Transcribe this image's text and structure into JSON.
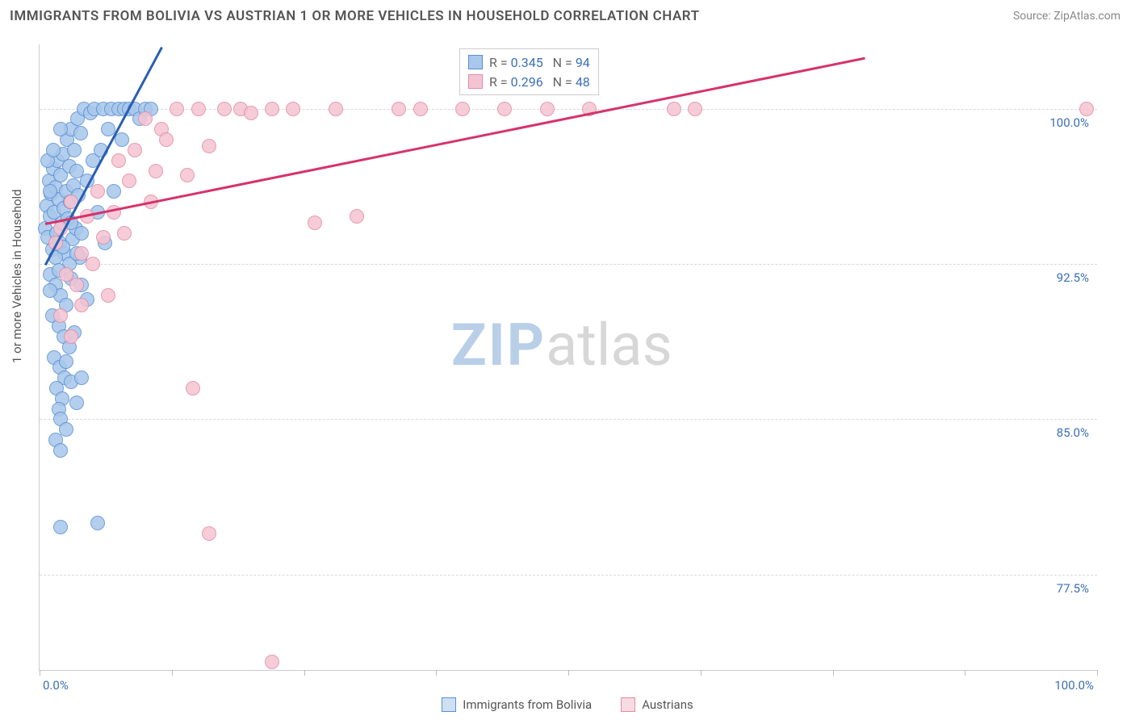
{
  "title": "IMMIGRANTS FROM BOLIVIA VS AUSTRIAN 1 OR MORE VEHICLES IN HOUSEHOLD CORRELATION CHART",
  "source": "Source: ZipAtlas.com",
  "ylabel": "1 or more Vehicles in Household",
  "watermark": {
    "zip": "ZIP",
    "atlas": "atlas",
    "color_zip": "#b9cfe8",
    "color_atlas": "#d7d7d7"
  },
  "chart": {
    "type": "scatter",
    "xlim": [
      0,
      100
    ],
    "ylim": [
      72.9,
      103.1
    ],
    "x_tick_positions": [
      0,
      12.5,
      25,
      37.5,
      50,
      62.5,
      75,
      87.5,
      100
    ],
    "x_tick_labels": {
      "0": "0.0%",
      "100": "100.0%"
    },
    "y_ticks": [
      77.5,
      85.0,
      92.5,
      100.0
    ],
    "y_tick_labels": [
      "77.5%",
      "85.0%",
      "92.5%",
      "100.0%"
    ],
    "grid_color": "#d8d8d8",
    "background_color": "#ffffff",
    "point_radius": 9,
    "point_stroke_width": 1.5,
    "point_fill_opacity": 0.35,
    "series": [
      {
        "name": "Immigrants from Bolivia",
        "key": "bolivia",
        "color_stroke": "#5a8fd6",
        "color_fill": "#a8c7ea",
        "R": 0.345,
        "N": 94,
        "trend": {
          "x1": 0.5,
          "y1": 92.5,
          "x2": 11.5,
          "y2": 103.0,
          "color": "#2a5fb0",
          "width": 2.5
        },
        "points": [
          [
            0.5,
            94.2
          ],
          [
            0.7,
            95.3
          ],
          [
            0.8,
            93.8
          ],
          [
            0.9,
            96.5
          ],
          [
            1.0,
            94.8
          ],
          [
            1.1,
            95.9
          ],
          [
            1.2,
            93.2
          ],
          [
            1.3,
            97.1
          ],
          [
            1.4,
            95.0
          ],
          [
            1.5,
            96.2
          ],
          [
            1.6,
            94.0
          ],
          [
            1.7,
            97.5
          ],
          [
            1.8,
            95.6
          ],
          [
            1.9,
            93.5
          ],
          [
            2.0,
            96.8
          ],
          [
            2.1,
            94.5
          ],
          [
            2.2,
            97.8
          ],
          [
            2.3,
            95.2
          ],
          [
            2.4,
            93.0
          ],
          [
            2.5,
            96.0
          ],
          [
            2.6,
            98.5
          ],
          [
            2.7,
            94.7
          ],
          [
            2.8,
            97.2
          ],
          [
            2.9,
            95.5
          ],
          [
            3.0,
            99.0
          ],
          [
            3.1,
            93.7
          ],
          [
            3.2,
            96.3
          ],
          [
            3.3,
            98.0
          ],
          [
            3.4,
            94.2
          ],
          [
            3.5,
            97.0
          ],
          [
            3.6,
            99.5
          ],
          [
            3.7,
            95.8
          ],
          [
            3.8,
            92.8
          ],
          [
            3.9,
            98.8
          ],
          [
            4.0,
            94.0
          ],
          [
            4.2,
            100.0
          ],
          [
            4.5,
            96.5
          ],
          [
            4.8,
            99.8
          ],
          [
            5.0,
            97.5
          ],
          [
            5.2,
            100.0
          ],
          [
            5.5,
            95.0
          ],
          [
            5.8,
            98.0
          ],
          [
            6.0,
            100.0
          ],
          [
            6.2,
            93.5
          ],
          [
            6.5,
            99.0
          ],
          [
            6.8,
            100.0
          ],
          [
            7.0,
            96.0
          ],
          [
            7.5,
            100.0
          ],
          [
            7.8,
            98.5
          ],
          [
            8.0,
            100.0
          ],
          [
            8.5,
            100.0
          ],
          [
            9.0,
            100.0
          ],
          [
            9.5,
            99.5
          ],
          [
            10.0,
            100.0
          ],
          [
            10.5,
            100.0
          ],
          [
            1.0,
            92.0
          ],
          [
            1.5,
            91.5
          ],
          [
            2.0,
            91.0
          ],
          [
            2.5,
            90.5
          ],
          [
            3.0,
            91.8
          ],
          [
            1.2,
            90.0
          ],
          [
            1.8,
            89.5
          ],
          [
            2.3,
            89.0
          ],
          [
            2.8,
            88.5
          ],
          [
            3.3,
            89.2
          ],
          [
            1.4,
            88.0
          ],
          [
            1.9,
            87.5
          ],
          [
            2.4,
            87.0
          ],
          [
            1.6,
            86.5
          ],
          [
            2.1,
            86.0
          ],
          [
            1.8,
            85.5
          ],
          [
            2.0,
            85.0
          ],
          [
            1.5,
            92.8
          ],
          [
            2.2,
            93.3
          ],
          [
            3.0,
            94.5
          ],
          [
            1.0,
            96.0
          ],
          [
            0.8,
            97.5
          ],
          [
            1.3,
            98.0
          ],
          [
            2.0,
            99.0
          ],
          [
            2.8,
            92.5
          ],
          [
            3.5,
            93.0
          ],
          [
            4.0,
            91.5
          ],
          [
            4.5,
            90.8
          ],
          [
            2.5,
            87.8
          ],
          [
            3.0,
            86.8
          ],
          [
            2.0,
            79.8
          ],
          [
            5.5,
            80.0
          ],
          [
            1.5,
            84.0
          ],
          [
            2.0,
            83.5
          ],
          [
            2.5,
            84.5
          ],
          [
            3.5,
            85.8
          ],
          [
            4.0,
            87.0
          ],
          [
            1.0,
            91.2
          ],
          [
            1.8,
            92.2
          ]
        ]
      },
      {
        "name": "Austrians",
        "key": "austrians",
        "color_stroke": "#e48aa4",
        "color_fill": "#f4c4d2",
        "R": 0.296,
        "N": 48,
        "trend": {
          "x1": 0.5,
          "y1": 94.5,
          "x2": 78,
          "y2": 102.5,
          "color": "#d6336c",
          "width": 2.5
        },
        "points": [
          [
            1.5,
            93.5
          ],
          [
            2.0,
            94.2
          ],
          [
            2.5,
            92.0
          ],
          [
            3.0,
            95.5
          ],
          [
            3.5,
            91.5
          ],
          [
            4.0,
            93.0
          ],
          [
            4.5,
            94.8
          ],
          [
            5.0,
            92.5
          ],
          [
            5.5,
            96.0
          ],
          [
            6.0,
            93.8
          ],
          [
            6.5,
            91.0
          ],
          [
            7.0,
            95.0
          ],
          [
            7.5,
            97.5
          ],
          [
            8.0,
            94.0
          ],
          [
            8.5,
            96.5
          ],
          [
            9.0,
            98.0
          ],
          [
            10.0,
            99.5
          ],
          [
            10.5,
            95.5
          ],
          [
            11.0,
            97.0
          ],
          [
            11.5,
            99.0
          ],
          [
            12.0,
            98.5
          ],
          [
            13.0,
            100.0
          ],
          [
            14.0,
            96.8
          ],
          [
            15.0,
            100.0
          ],
          [
            16.0,
            98.2
          ],
          [
            17.5,
            100.0
          ],
          [
            19.0,
            100.0
          ],
          [
            20.0,
            99.8
          ],
          [
            22.0,
            100.0
          ],
          [
            24.0,
            100.0
          ],
          [
            26.0,
            94.5
          ],
          [
            28.0,
            100.0
          ],
          [
            30.0,
            94.8
          ],
          [
            34.0,
            100.0
          ],
          [
            36.0,
            100.0
          ],
          [
            40.0,
            100.0
          ],
          [
            44.0,
            100.0
          ],
          [
            48.0,
            100.0
          ],
          [
            52.0,
            100.0
          ],
          [
            60.0,
            100.0
          ],
          [
            62.0,
            100.0
          ],
          [
            99.0,
            100.0
          ],
          [
            14.5,
            86.5
          ],
          [
            16.0,
            79.5
          ],
          [
            22.0,
            73.3
          ],
          [
            3.0,
            89.0
          ],
          [
            4.0,
            90.5
          ],
          [
            2.0,
            90.0
          ]
        ]
      }
    ]
  },
  "top_legend": {
    "R_label": "R =",
    "N_label": "N =",
    "text_color": "#666666",
    "value_color": "#3b6fb6"
  },
  "bottom_legend": {
    "items": [
      {
        "label": "Immigrants from Bolivia",
        "swatch_fill": "#cfe0f3",
        "swatch_stroke": "#5a8fd6"
      },
      {
        "label": "Austrians",
        "swatch_fill": "#f6dbe3",
        "swatch_stroke": "#e48aa4"
      }
    ]
  }
}
